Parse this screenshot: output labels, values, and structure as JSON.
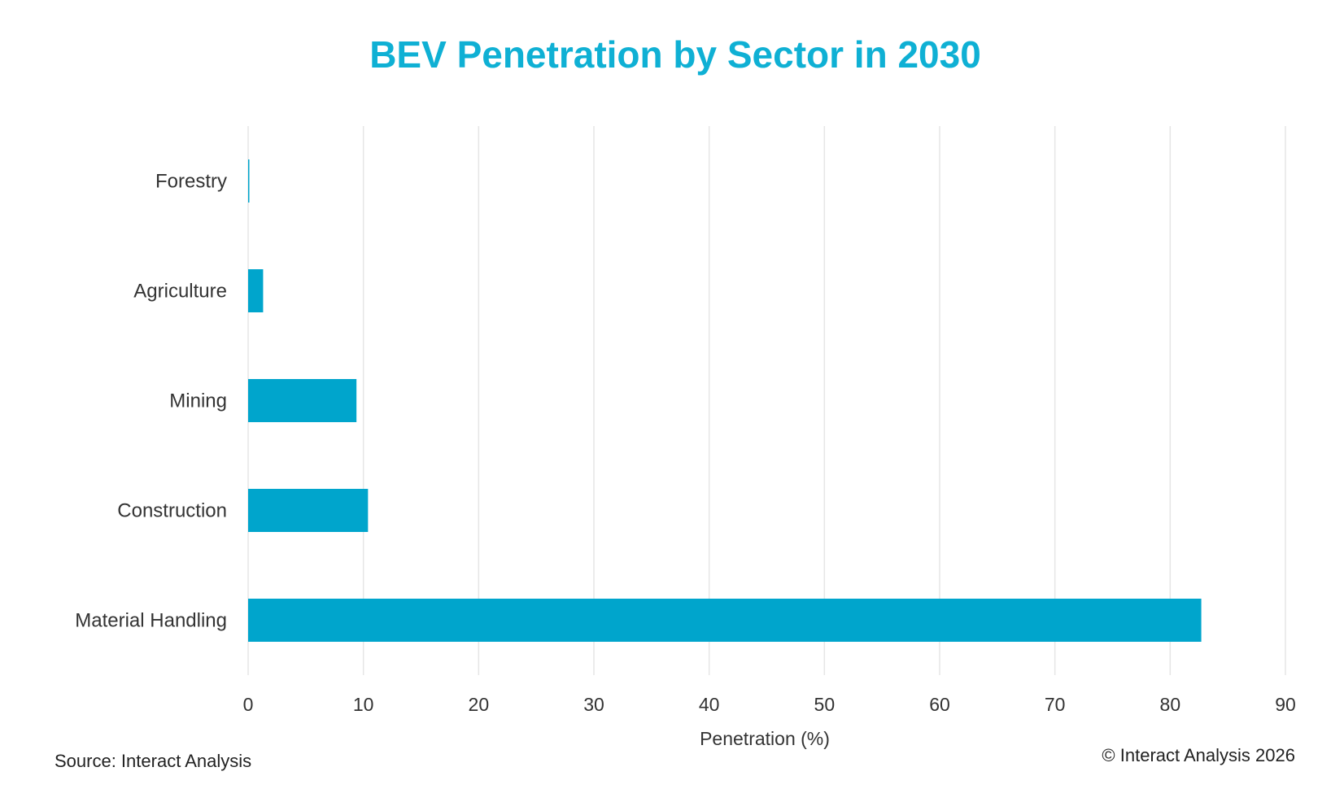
{
  "chart_data": {
    "type": "bar",
    "orientation": "horizontal",
    "title": "BEV Penetration by Sector in 2030",
    "xlabel": "Penetration (%)",
    "ylabel": "",
    "categories": [
      "Forestry",
      "Agriculture",
      "Mining",
      "Construction",
      "Material Handling"
    ],
    "values": [
      0.1,
      1.3,
      9.4,
      10.4,
      82.7
    ],
    "xlim": [
      0,
      90
    ],
    "xticks": [
      "0",
      "10",
      "20",
      "30",
      "40",
      "50",
      "60",
      "70",
      "80",
      "90"
    ],
    "grid": "vertical",
    "legend": "none"
  },
  "colors": {
    "bar": "#00a5cc",
    "title": "#0fb0d4",
    "grid": "#e6e6e6",
    "text": "#333333"
  },
  "footer": {
    "source": "Source: Interact Analysis",
    "copyright": "© Interact Analysis 2026"
  }
}
